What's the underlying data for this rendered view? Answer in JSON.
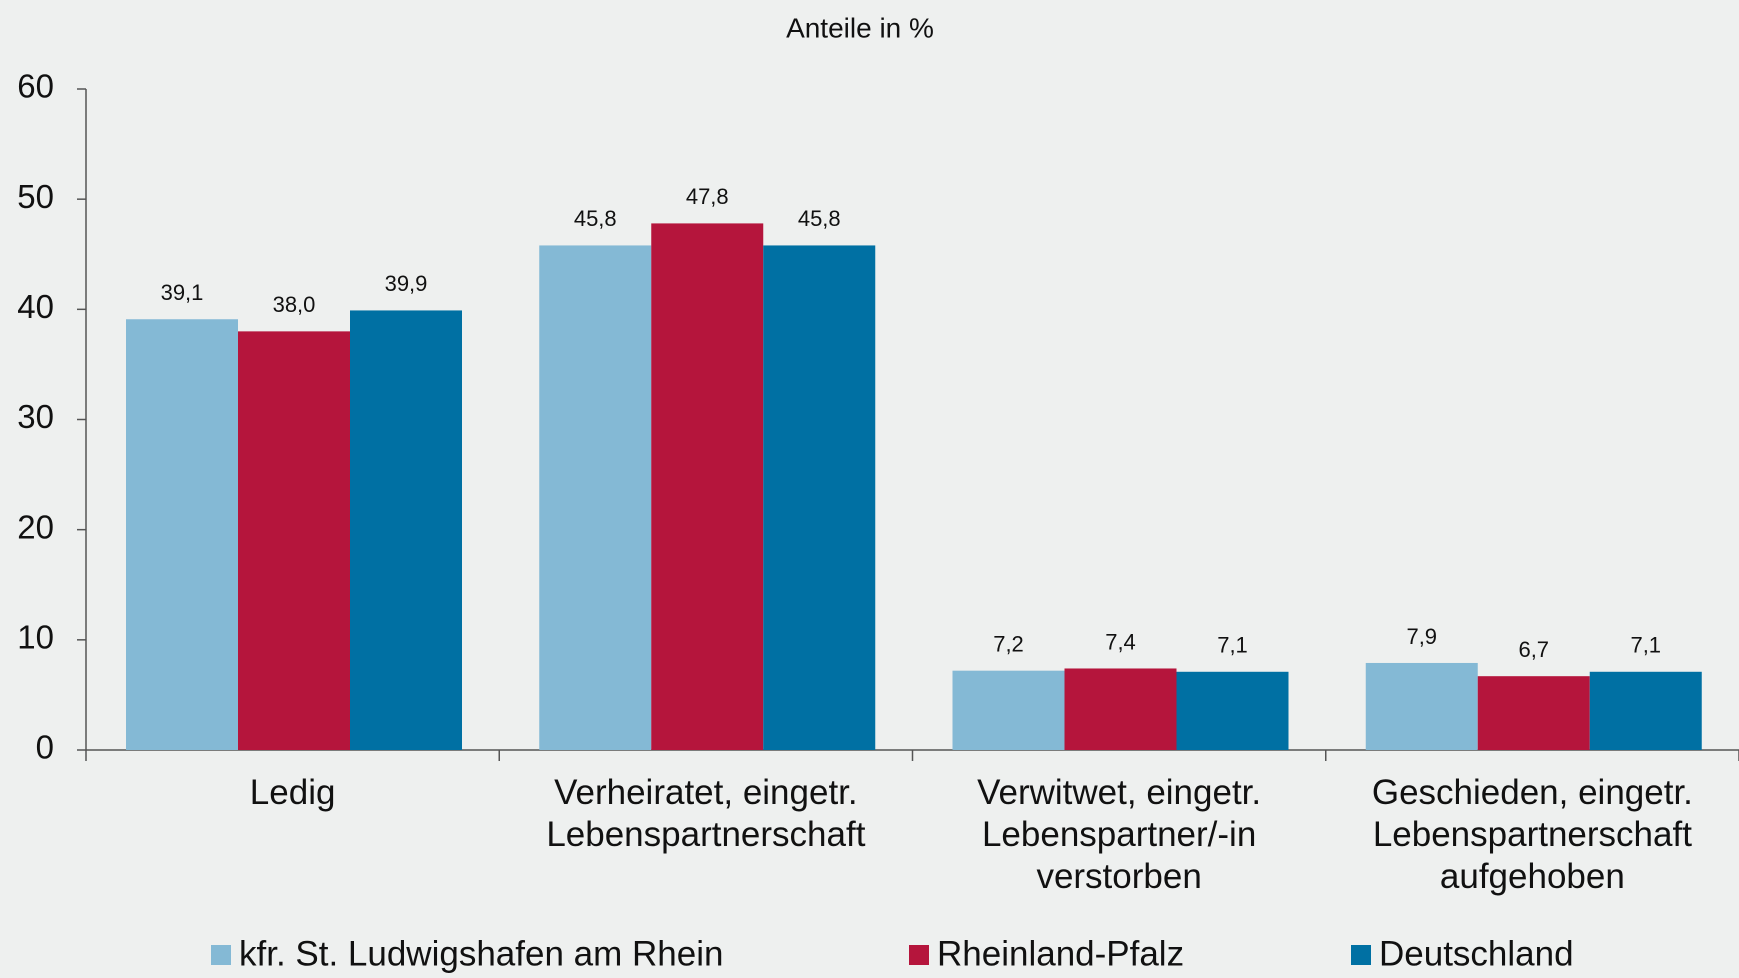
{
  "chart_data": {
    "type": "bar",
    "title": "Anteile in %",
    "categories": [
      "Ledig",
      "Verheiratet, eingetr.\nLebenspartnerschaft",
      "Verwitwet, eingetr.\nLebenspartner/-in\nverstorben",
      "Geschieden, eingetr.\nLebenspartnerschaft\naufgehoben"
    ],
    "series": [
      {
        "name": "kfr. St. Ludwigshafen am Rhein",
        "color": "#84b9d5",
        "values": [
          39.1,
          45.8,
          7.2,
          7.9
        ],
        "value_labels": [
          "39,1",
          "45,8",
          "7,2",
          "7,9"
        ]
      },
      {
        "name": "Rheinland-Pfalz",
        "color": "#b5153c",
        "values": [
          38.0,
          47.8,
          7.4,
          6.7
        ],
        "value_labels": [
          "38,0",
          "47,8",
          "7,4",
          "6,7"
        ]
      },
      {
        "name": "Deutschland",
        "color": "#0070a3",
        "values": [
          39.9,
          45.8,
          7.1,
          7.1
        ],
        "value_labels": [
          "39,9",
          "45,8",
          "7,1",
          "7,1"
        ]
      }
    ],
    "ylim": [
      0,
      60
    ],
    "yticks": [
      0,
      10,
      20,
      30,
      40,
      50,
      60
    ],
    "grid": false,
    "legend": "bottom"
  }
}
